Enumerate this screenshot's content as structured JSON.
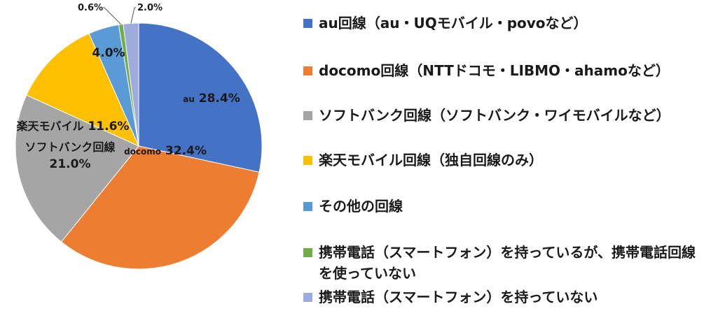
{
  "chart_data": {
    "type": "pie",
    "title": "",
    "slices": [
      {
        "label": "au回線（au・UQモバイル・povoなど）",
        "value": 28.4,
        "slice_label_name": "au",
        "value_label": "28.4%",
        "color": "#4472c4"
      },
      {
        "label": "docomo回線（NTTドコモ・LIBMO・ahamoなど）",
        "value": 32.4,
        "slice_label_name": "docomo",
        "value_label": "32.4%",
        "color": "#ed7d31"
      },
      {
        "label": "ソフトバンク回線（ソフトバンク・ワイモバイルなど）",
        "value": 21.0,
        "slice_label_name": "ソフトバンク回線",
        "value_label": "21.0%",
        "color": "#a5a5a5"
      },
      {
        "label": "楽天モバイル回線（独自回線のみ）",
        "value": 11.6,
        "slice_label_name": "楽天モバイル",
        "value_label": "11.6%",
        "color": "#ffc000"
      },
      {
        "label": "その他の回線",
        "value": 4.0,
        "slice_label_name": "",
        "value_label": "4.0%",
        "color": "#5b9bd5"
      },
      {
        "label": "携帯電話（スマートフォン）を持っているが、携帯電話回線を使っていない",
        "value": 0.6,
        "slice_label_name": "",
        "value_label": "0.6%",
        "color": "#70ad47"
      },
      {
        "label": "携帯電話（スマートフォン）を持っていない",
        "value": 2.0,
        "slice_label_name": "",
        "value_label": "2.0%",
        "color": "#9dabdd"
      }
    ],
    "legend_position": "right"
  }
}
